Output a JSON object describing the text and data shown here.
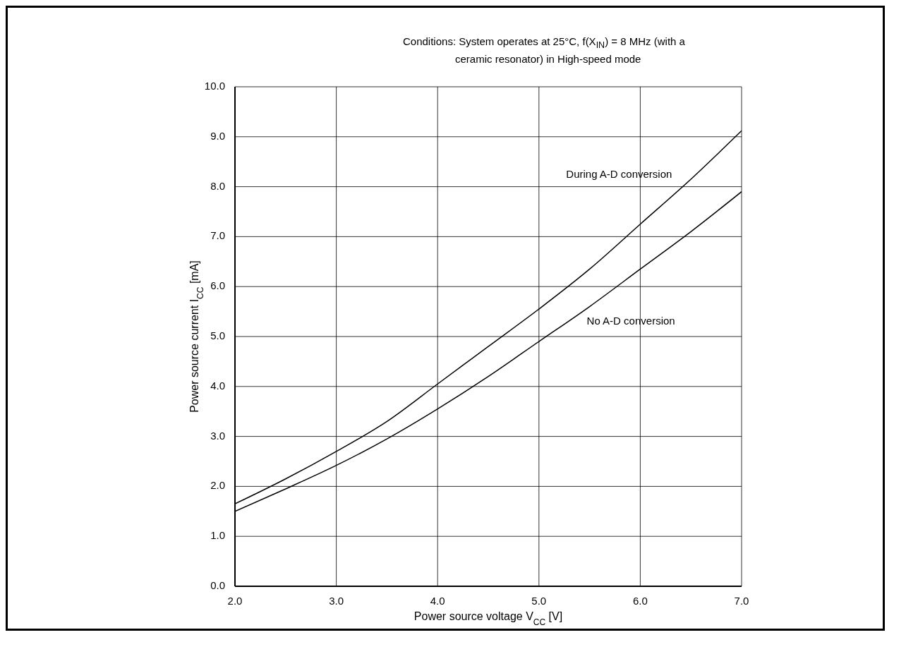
{
  "chart_data": {
    "type": "line",
    "title": "Conditions: System operates at 25°C, f(X$_{IN}$) = 8 MHz (with a ceramic resonator) in High-speed mode",
    "xlabel": "Power source voltage V$_{CC}$ [V]",
    "ylabel": "Power source current I$_{CC}$ [mA]",
    "x": [
      2.0,
      2.5,
      3.0,
      3.5,
      4.0,
      4.5,
      5.0,
      5.5,
      6.0,
      6.5,
      7.0
    ],
    "series": [
      {
        "name": "During A-D conversion",
        "color": "#000000",
        "values": [
          1.65,
          2.15,
          2.7,
          3.3,
          4.05,
          4.8,
          5.55,
          6.35,
          7.25,
          8.15,
          9.12
        ]
      },
      {
        "name": "No A-D conversion",
        "color": "#000000",
        "values": [
          1.5,
          1.95,
          2.42,
          2.95,
          3.55,
          4.2,
          4.9,
          5.6,
          6.35,
          7.1,
          7.9
        ]
      }
    ],
    "xlim": [
      2,
      7
    ],
    "xticks": [
      {
        "value": 2,
        "label": "2.0"
      },
      {
        "value": 3,
        "label": "3.0"
      },
      {
        "value": 4,
        "label": "4.0"
      },
      {
        "value": 5,
        "label": "5.0"
      },
      {
        "value": 6,
        "label": "6.0"
      },
      {
        "value": 7,
        "label": "7.0"
      }
    ],
    "ylim": [
      0,
      10
    ],
    "yticks": [
      {
        "value": 0,
        "label": "0.0"
      },
      {
        "value": 1,
        "label": "1.0"
      },
      {
        "value": 2,
        "label": "2.0"
      },
      {
        "value": 3,
        "label": "3.0"
      },
      {
        "value": 4,
        "label": "4.0"
      },
      {
        "value": 5,
        "label": "5.0"
      },
      {
        "value": 6,
        "label": "6.0"
      },
      {
        "value": 7,
        "label": "7.0"
      },
      {
        "value": 8,
        "label": "8.0"
      },
      {
        "value": 9,
        "label": "9.0"
      },
      {
        "value": 10,
        "label": "10.0"
      }
    ],
    "grid": true,
    "legend": false
  }
}
